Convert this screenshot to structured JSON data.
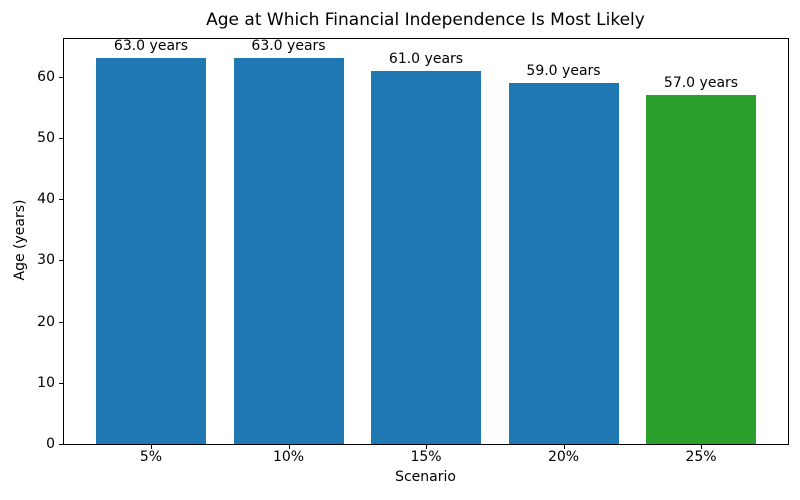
{
  "chart_data": {
    "type": "bar",
    "title": "Age at Which Financial Independence Is Most Likely",
    "xlabel": "Scenario",
    "ylabel": "Age (years)",
    "categories": [
      "5%",
      "10%",
      "15%",
      "20%",
      "25%"
    ],
    "values": [
      63.0,
      63.0,
      61.0,
      59.0,
      57.0
    ],
    "bar_labels": [
      "63.0 years",
      "63.0 years",
      "61.0 years",
      "59.0 years",
      "57.0 years"
    ],
    "bar_colors": [
      "#1f77b4",
      "#1f77b4",
      "#1f77b4",
      "#1f77b4",
      "#2ca02c"
    ],
    "default_bar_color": "#1f77b4",
    "highlight_bar_color": "#2ca02c",
    "ylim": [
      0,
      66.15
    ],
    "yticks": [
      0,
      10,
      20,
      30,
      40,
      50,
      60
    ],
    "grid": false,
    "legend_position": "none",
    "axis_color": "#000000",
    "text_color": "#000000",
    "background_color": "#ffffff"
  }
}
